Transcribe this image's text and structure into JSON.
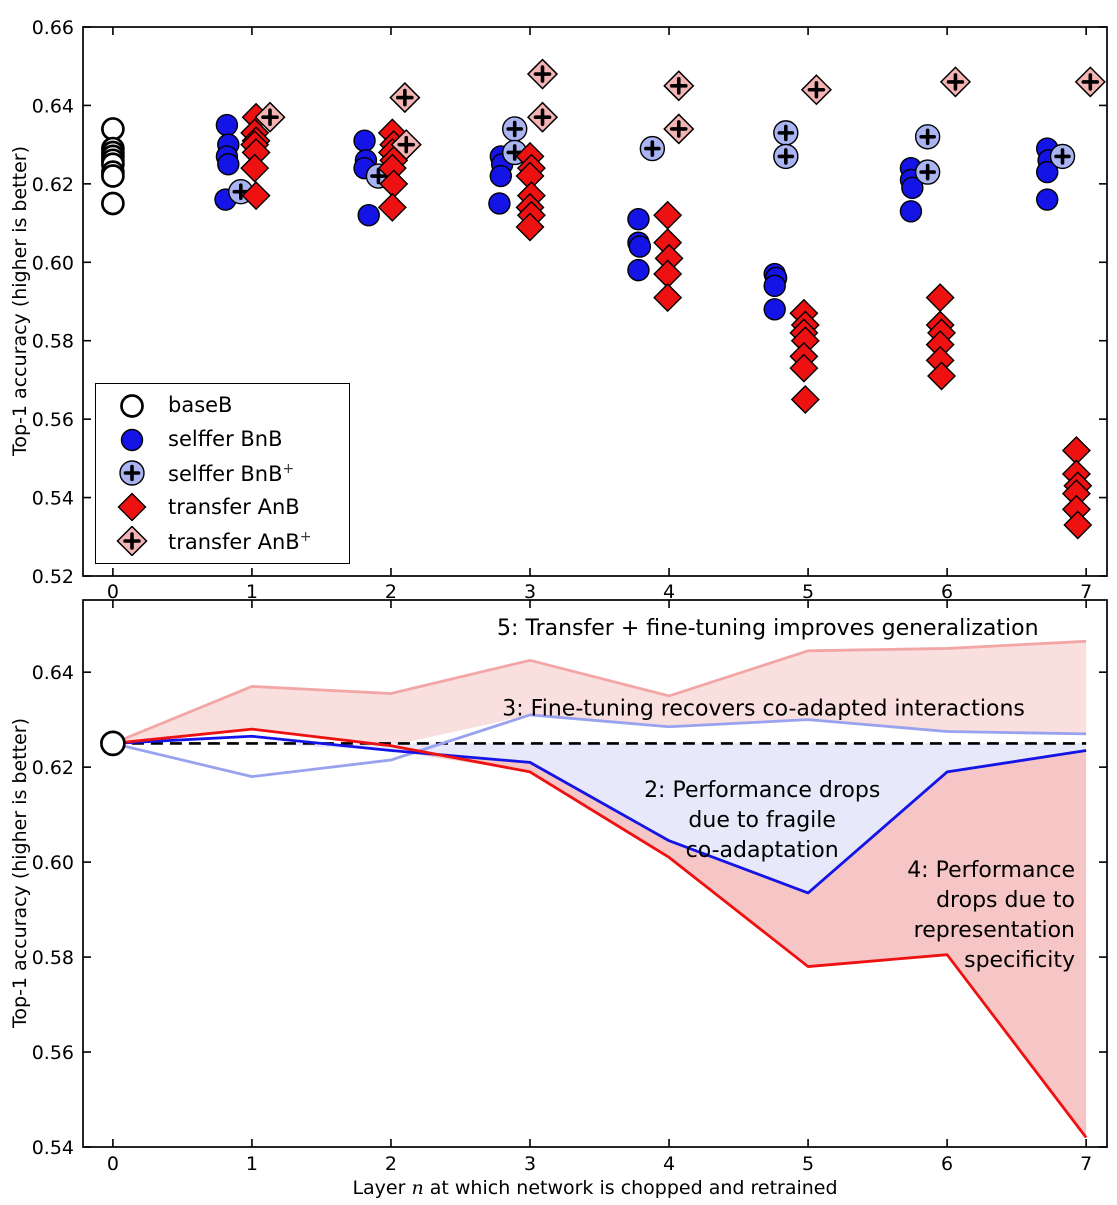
{
  "colors": {
    "blue": "#1414e6",
    "light_blue": "#aab4f2",
    "red": "#ee1111",
    "pink": "#f5b4b4",
    "line_light_blue": "#99a2ef",
    "line_pink": "#f3a6a6",
    "fill_region2": "#e7e8f9",
    "fill_region4": "#f6c6c6",
    "fill_region5": "#fadfdf",
    "axis": "#000000",
    "white": "#ffffff"
  },
  "xlabel": {
    "pre": "Layer ",
    "var": "n",
    "post": " at which network is chopped and retrained"
  },
  "chart_data": [
    {
      "type": "scatter",
      "title": "",
      "xlabel": "",
      "ylabel": "Top-1 accuracy (higher is better)",
      "xlim": [
        -0.215,
        7.15
      ],
      "ylim": [
        0.52,
        0.66
      ],
      "xticks": [
        0,
        1,
        2,
        3,
        4,
        5,
        6,
        7
      ],
      "yticks": [
        0.52,
        0.54,
        0.56,
        0.58,
        0.6,
        0.62,
        0.64,
        0.66
      ],
      "grid": false,
      "legend_position": "lower left",
      "legend": [
        {
          "label": "baseB",
          "sup": "",
          "marker": "open-circle"
        },
        {
          "label": "selffer BnB",
          "sup": "",
          "marker": "circle"
        },
        {
          "label": "selffer BnB",
          "sup": "+",
          "marker": "circle-plus"
        },
        {
          "label": "transfer AnB",
          "sup": "",
          "marker": "diamond"
        },
        {
          "label": "transfer AnB",
          "sup": "+",
          "marker": "diamond-plus"
        }
      ],
      "series": [
        {
          "name": "baseB",
          "marker": "open-circle",
          "points": [
            [
              0,
              0.634
            ],
            [
              0,
              0.629
            ],
            [
              0,
              0.628
            ],
            [
              0,
              0.627
            ],
            [
              0,
              0.626
            ],
            [
              0,
              0.625
            ],
            [
              0,
              0.623
            ],
            [
              0,
              0.622
            ],
            [
              0,
              0.615
            ]
          ]
        },
        {
          "name": "selffer BnB",
          "marker": "circle",
          "points": [
            [
              0.82,
              0.635
            ],
            [
              0.83,
              0.63
            ],
            [
              0.82,
              0.627
            ],
            [
              0.83,
              0.625
            ],
            [
              0.81,
              0.616
            ],
            [
              1.81,
              0.631
            ],
            [
              1.82,
              0.626
            ],
            [
              1.81,
              0.624
            ],
            [
              1.84,
              0.612
            ],
            [
              2.79,
              0.627
            ],
            [
              2.8,
              0.625
            ],
            [
              2.79,
              0.622
            ],
            [
              2.78,
              0.615
            ],
            [
              3.78,
              0.611
            ],
            [
              3.78,
              0.605
            ],
            [
              3.79,
              0.604
            ],
            [
              3.78,
              0.598
            ],
            [
              4.76,
              0.597
            ],
            [
              4.77,
              0.596
            ],
            [
              4.76,
              0.594
            ],
            [
              4.76,
              0.588
            ],
            [
              5.74,
              0.624
            ],
            [
              5.74,
              0.621
            ],
            [
              5.75,
              0.619
            ],
            [
              5.74,
              0.613
            ],
            [
              6.72,
              0.629
            ],
            [
              6.73,
              0.626
            ],
            [
              6.72,
              0.623
            ],
            [
              6.72,
              0.616
            ]
          ]
        },
        {
          "name": "selffer BnB+",
          "marker": "circle-plus",
          "points": [
            [
              0.92,
              0.618
            ],
            [
              1.91,
              0.622
            ],
            [
              2.89,
              0.634
            ],
            [
              2.89,
              0.628
            ],
            [
              3.88,
              0.629
            ],
            [
              4.84,
              0.633
            ],
            [
              4.84,
              0.627
            ],
            [
              5.86,
              0.632
            ],
            [
              5.86,
              0.623
            ],
            [
              6.83,
              0.627
            ]
          ]
        },
        {
          "name": "transfer AnB",
          "marker": "diamond",
          "points": [
            [
              1.03,
              0.637
            ],
            [
              1.02,
              0.633
            ],
            [
              1.03,
              0.631
            ],
            [
              1.02,
              0.63
            ],
            [
              1.03,
              0.628
            ],
            [
              1.02,
              0.624
            ],
            [
              1.03,
              0.617
            ],
            [
              2.01,
              0.633
            ],
            [
              2.02,
              0.63
            ],
            [
              2.01,
              0.628
            ],
            [
              2.02,
              0.626
            ],
            [
              2.01,
              0.624
            ],
            [
              2.02,
              0.62
            ],
            [
              2.01,
              0.614
            ],
            [
              3.0,
              0.627
            ],
            [
              3.01,
              0.624
            ],
            [
              3.0,
              0.622
            ],
            [
              3.01,
              0.617
            ],
            [
              3.0,
              0.614
            ],
            [
              3.01,
              0.612
            ],
            [
              3.0,
              0.609
            ],
            [
              3.99,
              0.612
            ],
            [
              3.99,
              0.605
            ],
            [
              4.0,
              0.601
            ],
            [
              3.99,
              0.597
            ],
            [
              3.99,
              0.591
            ],
            [
              4.97,
              0.587
            ],
            [
              4.98,
              0.584
            ],
            [
              4.97,
              0.582
            ],
            [
              4.98,
              0.58
            ],
            [
              4.97,
              0.576
            ],
            [
              4.97,
              0.573
            ],
            [
              4.98,
              0.565
            ],
            [
              5.95,
              0.591
            ],
            [
              5.95,
              0.584
            ],
            [
              5.96,
              0.582
            ],
            [
              5.95,
              0.579
            ],
            [
              5.95,
              0.575
            ],
            [
              5.96,
              0.571
            ],
            [
              6.93,
              0.552
            ],
            [
              6.93,
              0.546
            ],
            [
              6.94,
              0.543
            ],
            [
              6.93,
              0.541
            ],
            [
              6.93,
              0.537
            ],
            [
              6.94,
              0.533
            ]
          ]
        },
        {
          "name": "transfer AnB+",
          "marker": "diamond-plus",
          "points": [
            [
              1.13,
              0.637
            ],
            [
              2.1,
              0.642
            ],
            [
              2.11,
              0.63
            ],
            [
              3.09,
              0.648
            ],
            [
              3.09,
              0.637
            ],
            [
              4.07,
              0.645
            ],
            [
              4.07,
              0.634
            ],
            [
              5.06,
              0.644
            ],
            [
              6.06,
              0.646
            ],
            [
              7.03,
              0.646
            ]
          ]
        }
      ]
    },
    {
      "type": "line",
      "title": "",
      "ylabel": "Top-1 accuracy (higher is better)",
      "xlim": [
        -0.215,
        7.15
      ],
      "ylim": [
        0.54,
        0.6552
      ],
      "xticks": [
        0,
        1,
        2,
        3,
        4,
        5,
        6,
        7
      ],
      "yticks": [
        0.54,
        0.56,
        0.58,
        0.6,
        0.62,
        0.64
      ],
      "grid": false,
      "x": [
        0,
        1,
        2,
        3,
        4,
        5,
        6,
        7
      ],
      "baseline": {
        "name": "baseB",
        "value": 0.625,
        "style": "dashed",
        "marker_x": 0
      },
      "series": [
        {
          "name": "transfer AnB+ mean",
          "color_key": "line_pink",
          "values": [
            0.625,
            0.637,
            0.6355,
            0.6425,
            0.635,
            0.6445,
            0.645,
            0.6465
          ]
        },
        {
          "name": "selffer BnB+ mean",
          "color_key": "line_light_blue",
          "values": [
            0.625,
            0.618,
            0.6215,
            0.631,
            0.6285,
            0.63,
            0.6275,
            0.627
          ]
        },
        {
          "name": "selffer BnB mean",
          "color_key": "blue",
          "values": [
            0.625,
            0.6265,
            0.6235,
            0.621,
            0.6045,
            0.5935,
            0.619,
            0.6235
          ]
        },
        {
          "name": "transfer AnB mean",
          "color_key": "red",
          "values": [
            0.625,
            0.628,
            0.6245,
            0.619,
            0.601,
            0.578,
            0.5805,
            0.542
          ]
        }
      ],
      "regions": [
        {
          "name": "region-5-transfer-finetune",
          "fill_key": "fill_region5",
          "top": [
            0.625,
            0.637,
            0.6355,
            0.6425,
            0.635,
            0.6445,
            0.645,
            0.6465
          ],
          "bottom": [
            0.625,
            0.628,
            0.6245,
            0.631,
            0.6285,
            0.63,
            0.6275,
            0.627
          ]
        },
        {
          "name": "region-2-fragile-coadaptation",
          "fill_key": "fill_region2",
          "top": [
            0.625,
            0.625,
            0.625,
            0.625,
            0.625,
            0.625,
            0.625,
            0.625
          ],
          "bottom": [
            0.625,
            0.625,
            0.6235,
            0.621,
            0.6045,
            0.5935,
            0.619,
            0.6235
          ]
        },
        {
          "name": "region-4-representation-specificity",
          "fill_key": "fill_region4",
          "top": [
            0.625,
            0.6265,
            0.6235,
            0.621,
            0.6045,
            0.5935,
            0.619,
            0.6235
          ],
          "bottom": [
            0.625,
            0.6265,
            0.6235,
            0.619,
            0.601,
            0.578,
            0.5805,
            0.542
          ]
        }
      ],
      "annotations": [
        {
          "id": "annotation-5",
          "x": 4.71,
          "y": 0.6495,
          "anchor": "middle",
          "lines": [
            "5: Transfer + fine-tuning improves generalization"
          ]
        },
        {
          "id": "annotation-3",
          "x": 4.68,
          "y": 0.6326,
          "anchor": "middle",
          "lines": [
            "3: Fine-tuning recovers co-adapted interactions"
          ]
        },
        {
          "id": "annotation-2",
          "x": 4.67,
          "y": 0.6154,
          "anchor": "middle",
          "lines": [
            "2: Performance drops",
            "due to fragile",
            "co-adaptation"
          ]
        },
        {
          "id": "annotation-4",
          "x": 6.92,
          "y": 0.5985,
          "anchor": "end",
          "lines": [
            "4: Performance",
            "drops due to",
            "representation",
            "specificity"
          ]
        }
      ]
    }
  ]
}
